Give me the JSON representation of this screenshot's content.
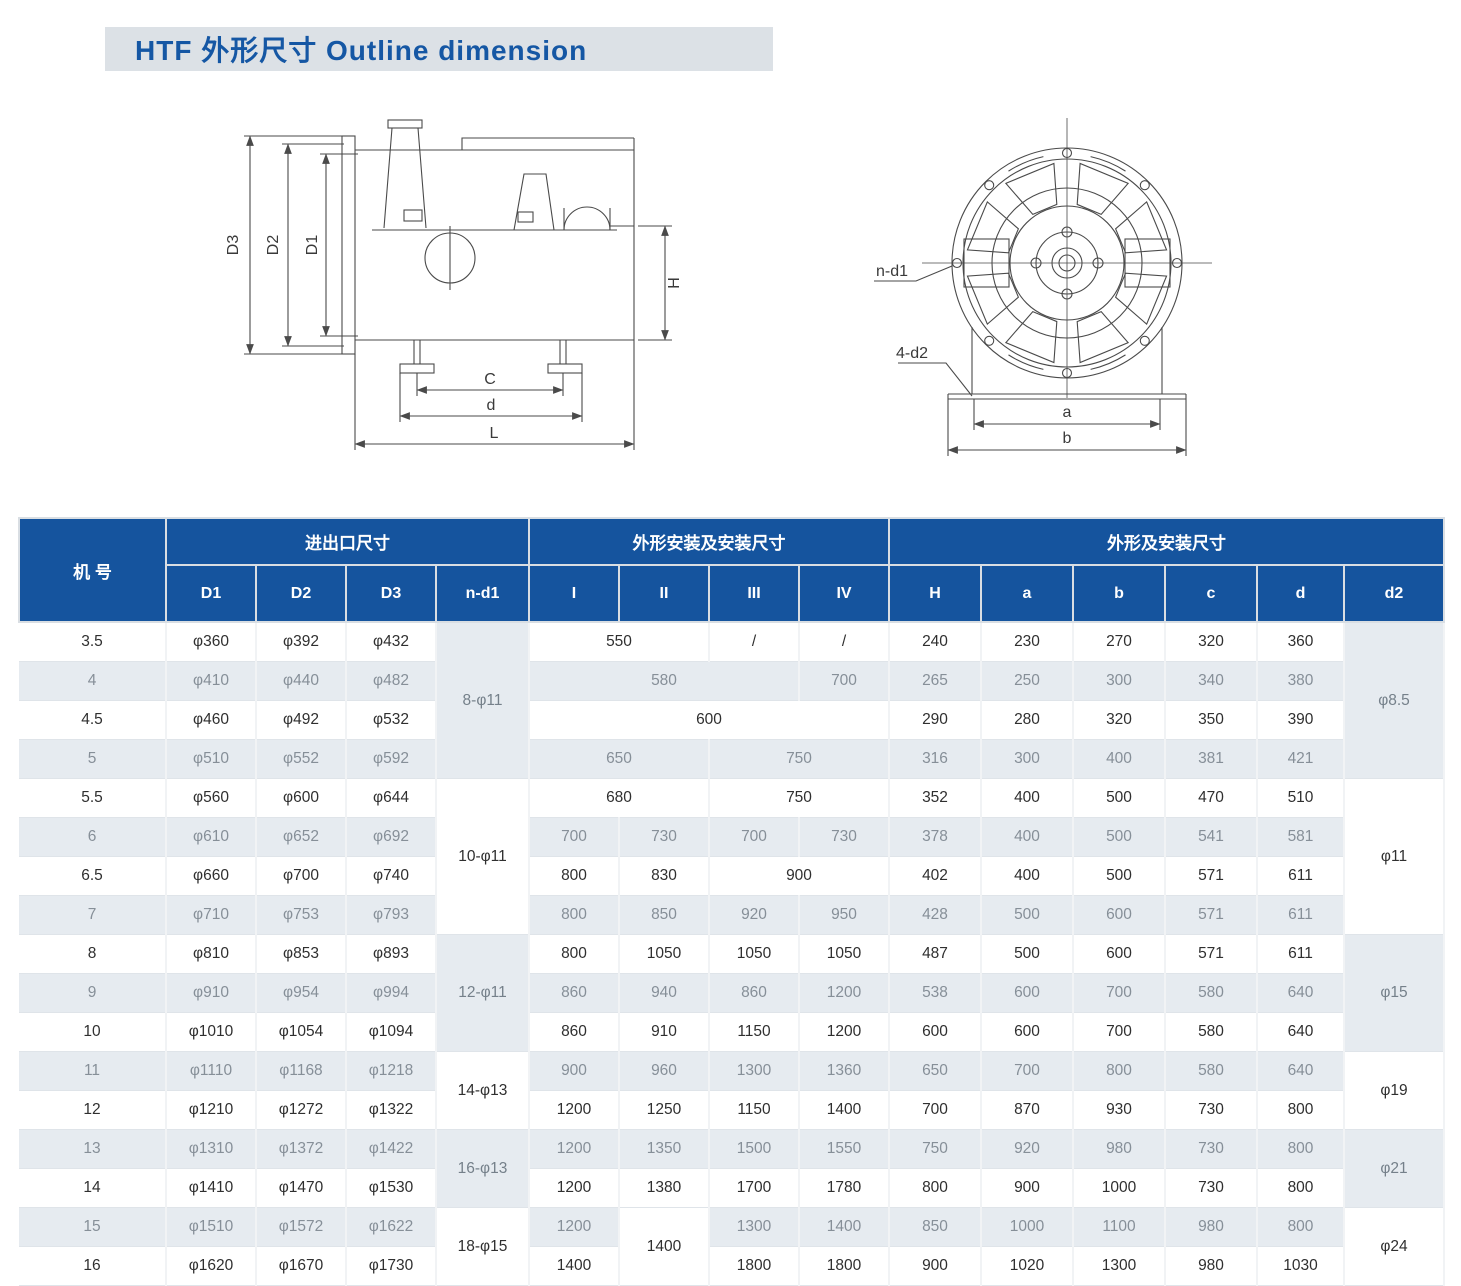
{
  "title": "HTF 外形尺寸  Outline dimension",
  "colors": {
    "header_blue": "#15549e",
    "title_text": "#1557a4",
    "title_bar_bg": "#dce1e6",
    "row_shade": "#e6ebf0"
  },
  "diagram_side": {
    "labels": {
      "d3": "D3",
      "d2": "D2",
      "d1": "D1",
      "h": "H",
      "c": "C",
      "d": "d",
      "l": "L"
    }
  },
  "diagram_front": {
    "labels": {
      "n_d1": "n-d1",
      "four_d2": "4-d2",
      "a": "a",
      "b": "b"
    }
  },
  "table": {
    "group_headers": [
      {
        "label": "机 号",
        "rowspan": 2
      },
      {
        "label": "进出口尺寸",
        "colspan": 4
      },
      {
        "label": "外形安装及安装尺寸",
        "colspan": 4
      },
      {
        "label": "外形及安装尺寸",
        "colspan": 6
      }
    ],
    "sub_headers": [
      "D1",
      "D2",
      "D3",
      "n-d1",
      "I",
      "II",
      "III",
      "IV",
      "H",
      "a",
      "b",
      "c",
      "d",
      "d2"
    ],
    "rows": [
      [
        {
          "t": "3.5"
        },
        {
          "t": "φ360"
        },
        {
          "t": "φ392"
        },
        {
          "t": "φ432"
        },
        {
          "t": "8-φ11",
          "rs": 4,
          "bg": "s"
        },
        {
          "t": "550",
          "cs": 2
        },
        {
          "t": "/"
        },
        {
          "t": "/"
        },
        {
          "t": "240"
        },
        {
          "t": "230"
        },
        {
          "t": "270"
        },
        {
          "t": "320"
        },
        {
          "t": "360"
        },
        {
          "t": "φ8.5",
          "rs": 4,
          "bg": "s"
        }
      ],
      [
        {
          "t": "4"
        },
        {
          "t": "φ410"
        },
        {
          "t": "φ440"
        },
        {
          "t": "φ482"
        },
        {
          "t": "580",
          "cs": 3
        },
        {
          "t": "700"
        },
        {
          "t": "265"
        },
        {
          "t": "250"
        },
        {
          "t": "300"
        },
        {
          "t": "340"
        },
        {
          "t": "380"
        }
      ],
      [
        {
          "t": "4.5"
        },
        {
          "t": "φ460"
        },
        {
          "t": "φ492"
        },
        {
          "t": "φ532"
        },
        {
          "t": "600",
          "cs": 4
        },
        {
          "t": "290"
        },
        {
          "t": "280"
        },
        {
          "t": "320"
        },
        {
          "t": "350"
        },
        {
          "t": "390"
        }
      ],
      [
        {
          "t": "5"
        },
        {
          "t": "φ510"
        },
        {
          "t": "φ552"
        },
        {
          "t": "φ592"
        },
        {
          "t": "650",
          "cs": 2
        },
        {
          "t": "750",
          "cs": 2
        },
        {
          "t": "316"
        },
        {
          "t": "300"
        },
        {
          "t": "400"
        },
        {
          "t": "381"
        },
        {
          "t": "421"
        }
      ],
      [
        {
          "t": "5.5"
        },
        {
          "t": "φ560"
        },
        {
          "t": "φ600"
        },
        {
          "t": "φ644"
        },
        {
          "t": "10-φ11",
          "rs": 4,
          "bg": "p"
        },
        {
          "t": "680",
          "cs": 2
        },
        {
          "t": "750",
          "cs": 2
        },
        {
          "t": "352"
        },
        {
          "t": "400"
        },
        {
          "t": "500"
        },
        {
          "t": "470"
        },
        {
          "t": "510"
        },
        {
          "t": "φ11",
          "rs": 4,
          "bg": "p"
        }
      ],
      [
        {
          "t": "6"
        },
        {
          "t": "φ610"
        },
        {
          "t": "φ652"
        },
        {
          "t": "φ692"
        },
        {
          "t": "700"
        },
        {
          "t": "730"
        },
        {
          "t": "700"
        },
        {
          "t": "730"
        },
        {
          "t": "378"
        },
        {
          "t": "400"
        },
        {
          "t": "500"
        },
        {
          "t": "541"
        },
        {
          "t": "581"
        }
      ],
      [
        {
          "t": "6.5"
        },
        {
          "t": "φ660"
        },
        {
          "t": "φ700"
        },
        {
          "t": "φ740"
        },
        {
          "t": "800"
        },
        {
          "t": "830"
        },
        {
          "t": "900",
          "cs": 2
        },
        {
          "t": "402"
        },
        {
          "t": "400"
        },
        {
          "t": "500"
        },
        {
          "t": "571"
        },
        {
          "t": "611"
        }
      ],
      [
        {
          "t": "7"
        },
        {
          "t": "φ710"
        },
        {
          "t": "φ753"
        },
        {
          "t": "φ793"
        },
        {
          "t": "800"
        },
        {
          "t": "850"
        },
        {
          "t": "920"
        },
        {
          "t": "950"
        },
        {
          "t": "428"
        },
        {
          "t": "500"
        },
        {
          "t": "600"
        },
        {
          "t": "571"
        },
        {
          "t": "611"
        }
      ],
      [
        {
          "t": "8"
        },
        {
          "t": "φ810"
        },
        {
          "t": "φ853"
        },
        {
          "t": "φ893"
        },
        {
          "t": "12-φ11",
          "rs": 3,
          "bg": "s"
        },
        {
          "t": "800"
        },
        {
          "t": "1050"
        },
        {
          "t": "1050"
        },
        {
          "t": "1050"
        },
        {
          "t": "487"
        },
        {
          "t": "500"
        },
        {
          "t": "600"
        },
        {
          "t": "571"
        },
        {
          "t": "611"
        },
        {
          "t": "φ15",
          "rs": 3,
          "bg": "s"
        }
      ],
      [
        {
          "t": "9"
        },
        {
          "t": "φ910"
        },
        {
          "t": "φ954"
        },
        {
          "t": "φ994"
        },
        {
          "t": "860"
        },
        {
          "t": "940"
        },
        {
          "t": "860"
        },
        {
          "t": "1200"
        },
        {
          "t": "538"
        },
        {
          "t": "600"
        },
        {
          "t": "700"
        },
        {
          "t": "580"
        },
        {
          "t": "640"
        }
      ],
      [
        {
          "t": "10"
        },
        {
          "t": "φ1010"
        },
        {
          "t": "φ1054"
        },
        {
          "t": "φ1094"
        },
        {
          "t": "860"
        },
        {
          "t": "910"
        },
        {
          "t": "1150"
        },
        {
          "t": "1200"
        },
        {
          "t": "600"
        },
        {
          "t": "600"
        },
        {
          "t": "700"
        },
        {
          "t": "580"
        },
        {
          "t": "640"
        }
      ],
      [
        {
          "t": "11"
        },
        {
          "t": "φ1110"
        },
        {
          "t": "φ1168"
        },
        {
          "t": "φ1218"
        },
        {
          "t": "14-φ13",
          "rs": 2,
          "bg": "p"
        },
        {
          "t": "900"
        },
        {
          "t": "960"
        },
        {
          "t": "1300"
        },
        {
          "t": "1360"
        },
        {
          "t": "650"
        },
        {
          "t": "700"
        },
        {
          "t": "800"
        },
        {
          "t": "580"
        },
        {
          "t": "640"
        },
        {
          "t": "φ19",
          "rs": 2,
          "bg": "p"
        }
      ],
      [
        {
          "t": "12"
        },
        {
          "t": "φ1210"
        },
        {
          "t": "φ1272"
        },
        {
          "t": "φ1322"
        },
        {
          "t": "1200"
        },
        {
          "t": "1250"
        },
        {
          "t": "1150"
        },
        {
          "t": "1400"
        },
        {
          "t": "700"
        },
        {
          "t": "870"
        },
        {
          "t": "930"
        },
        {
          "t": "730"
        },
        {
          "t": "800"
        }
      ],
      [
        {
          "t": "13"
        },
        {
          "t": "φ1310"
        },
        {
          "t": "φ1372"
        },
        {
          "t": "φ1422"
        },
        {
          "t": "16-φ13",
          "rs": 2,
          "bg": "s"
        },
        {
          "t": "1200"
        },
        {
          "t": "1350"
        },
        {
          "t": "1500"
        },
        {
          "t": "1550"
        },
        {
          "t": "750"
        },
        {
          "t": "920"
        },
        {
          "t": "980"
        },
        {
          "t": "730"
        },
        {
          "t": "800"
        },
        {
          "t": "φ21",
          "rs": 2,
          "bg": "s"
        }
      ],
      [
        {
          "t": "14"
        },
        {
          "t": "φ1410"
        },
        {
          "t": "φ1470"
        },
        {
          "t": "φ1530"
        },
        {
          "t": "1200"
        },
        {
          "t": "1380"
        },
        {
          "t": "1700"
        },
        {
          "t": "1780"
        },
        {
          "t": "800"
        },
        {
          "t": "900"
        },
        {
          "t": "1000"
        },
        {
          "t": "730"
        },
        {
          "t": "800"
        }
      ],
      [
        {
          "t": "15"
        },
        {
          "t": "φ1510"
        },
        {
          "t": "φ1572"
        },
        {
          "t": "φ1622"
        },
        {
          "t": "18-φ15",
          "rs": 2,
          "bg": "p"
        },
        {
          "t": "1200"
        },
        {
          "t": "1400",
          "rs": 2,
          "bg": "p"
        },
        {
          "t": "1300"
        },
        {
          "t": "1400"
        },
        {
          "t": "850"
        },
        {
          "t": "1000"
        },
        {
          "t": "1100"
        },
        {
          "t": "980"
        },
        {
          "t": "800"
        },
        {
          "t": "φ24",
          "rs": 2,
          "bg": "p"
        }
      ],
      [
        {
          "t": "16"
        },
        {
          "t": "φ1620"
        },
        {
          "t": "φ1670"
        },
        {
          "t": "φ1730"
        },
        {
          "t": "1400"
        },
        {
          "t": "1800"
        },
        {
          "t": "1800"
        },
        {
          "t": "900"
        },
        {
          "t": "1020"
        },
        {
          "t": "1300"
        },
        {
          "t": "980"
        },
        {
          "t": "1030"
        }
      ]
    ]
  }
}
